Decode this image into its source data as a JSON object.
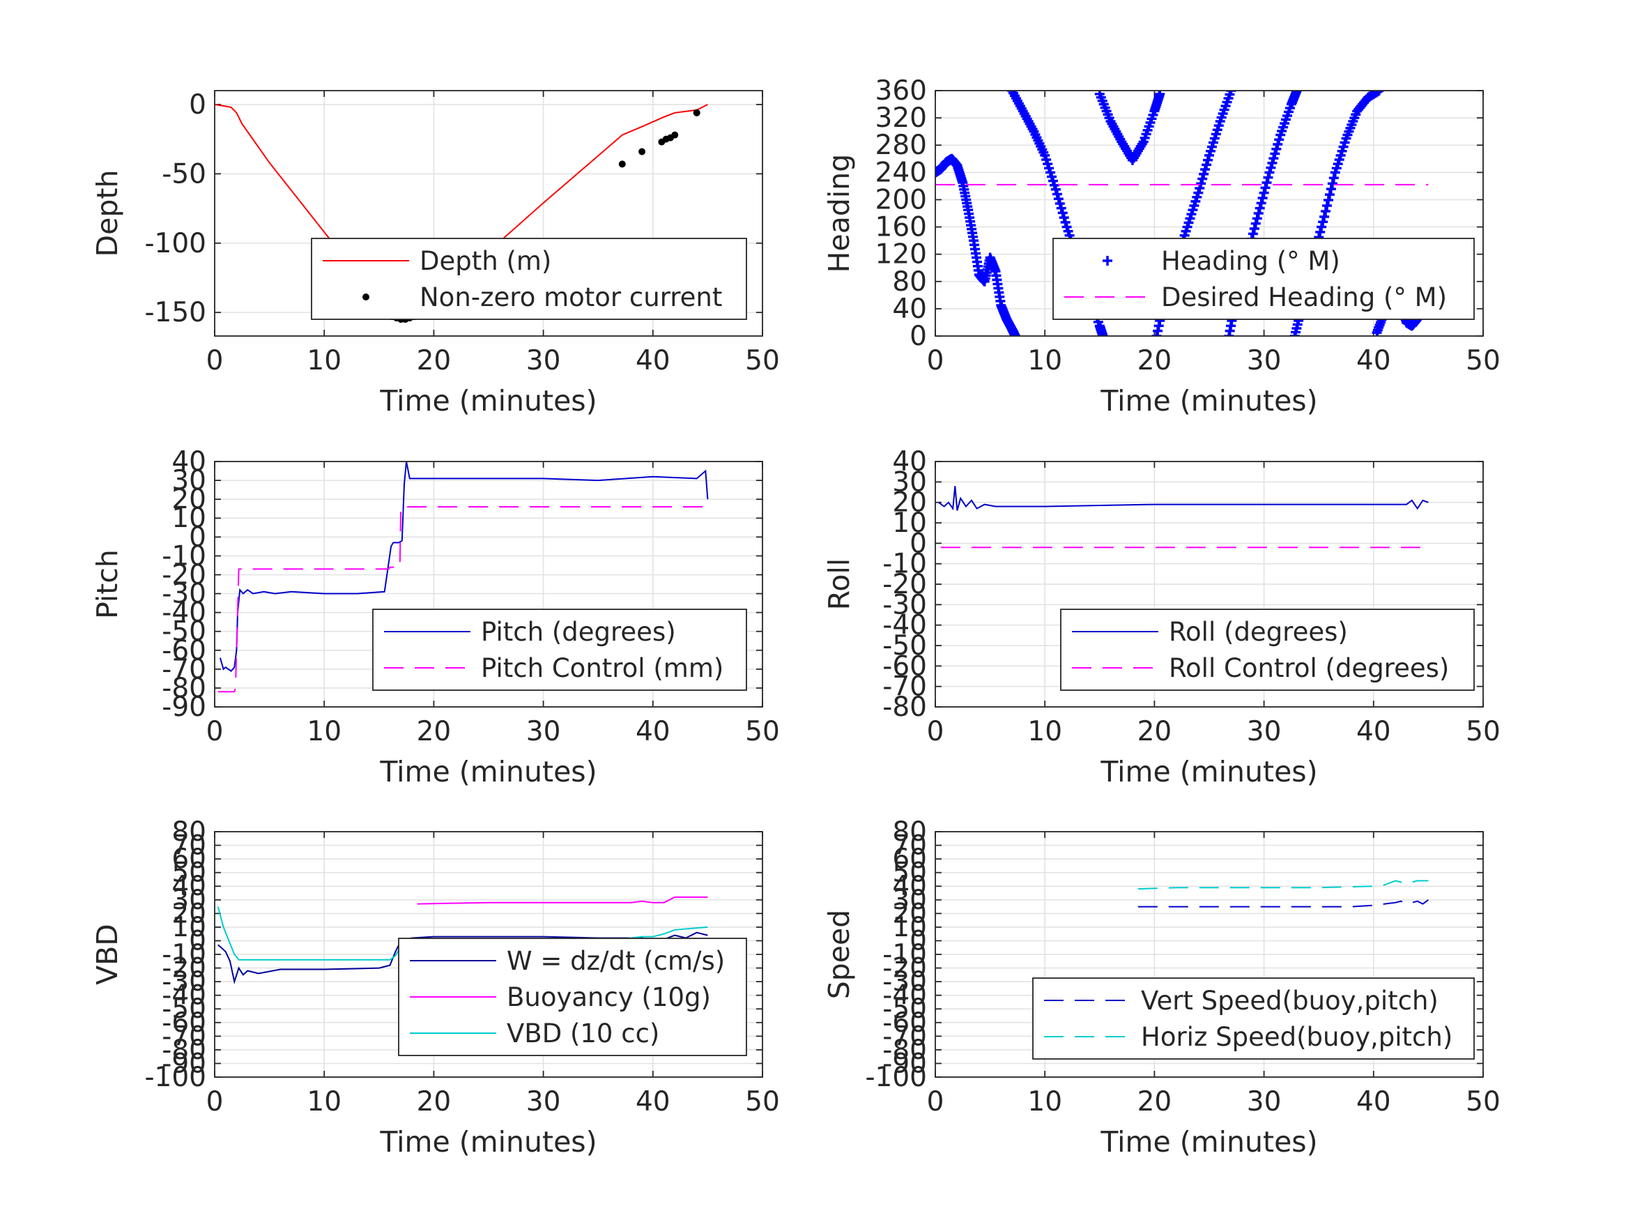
{
  "chart_data": [
    {
      "type": "line",
      "xlabel": "Time (minutes)",
      "ylabel": "Depth",
      "xlim": [
        0,
        50
      ],
      "ylim": [
        -167,
        10
      ],
      "xticks": [
        "0",
        "10",
        "20",
        "30",
        "40",
        "50"
      ],
      "yticks": [
        "0",
        "-50",
        "-100",
        "-150"
      ],
      "grid": true,
      "legend_position": "bottom-right",
      "series": [
        {
          "name": "Depth (m)",
          "color": "#ff0000",
          "style": "solid",
          "x": [
            0,
            0.8,
            1.5,
            2,
            2.5,
            5,
            8,
            11,
            14,
            16,
            17,
            18.5,
            20,
            25,
            30,
            35,
            37.2,
            39,
            41,
            42,
            44,
            45
          ],
          "y": [
            0,
            -1,
            -2,
            -6,
            -14,
            -42,
            -72,
            -102,
            -132,
            -152,
            -155,
            -153,
            -141,
            -106,
            -71,
            -37,
            -22,
            -16,
            -9,
            -6,
            -4,
            0
          ]
        },
        {
          "name": "Non-zero motor current",
          "color": "#000000",
          "style": "points",
          "x": [
            13.8,
            16.2,
            16.6,
            17.0,
            17.4,
            17.8,
            18.2,
            18.6,
            37.2,
            39.0,
            40.8,
            41.2,
            41.6,
            42.0,
            44.0
          ],
          "y": [
            -138,
            -153,
            -154,
            -155,
            -155,
            -154,
            -153,
            -152,
            -43,
            -34,
            -27,
            -25,
            -24,
            -22,
            -6
          ]
        }
      ]
    },
    {
      "type": "scatter",
      "xlabel": "Time (minutes)",
      "ylabel": "Heading",
      "xlim": [
        0,
        50
      ],
      "ylim": [
        0,
        360
      ],
      "xticks": [
        "0",
        "10",
        "20",
        "30",
        "40",
        "50"
      ],
      "yticks": [
        "0",
        "40",
        "80",
        "120",
        "160",
        "200",
        "240",
        "280",
        "320",
        "360"
      ],
      "grid": true,
      "legend_position": "bottom-right",
      "series": [
        {
          "name": "Heading (° M)",
          "color": "#0000ff",
          "style": "plus",
          "segments": [
            {
              "x": [
                0,
                0.5,
                1,
                1.5,
                2,
                2.5,
                3,
                3.5,
                4,
                4.5,
                5,
                5.5,
                6,
                6.5,
                7,
                7.3
              ],
              "y": [
                240,
                245,
                255,
                260,
                250,
                225,
                185,
                140,
                90,
                80,
                115,
                95,
                45,
                25,
                10,
                0
              ]
            },
            {
              "x": [
                7,
                8,
                9,
                10,
                11,
                12,
                13,
                14,
                15,
                15.3
              ],
              "y": [
                360,
                330,
                300,
                265,
                215,
                160,
                110,
                60,
                15,
                0
              ]
            },
            {
              "x": [
                15,
                16,
                17,
                18,
                19,
                20,
                20.5
              ],
              "y": [
                355,
                315,
                285,
                258,
                285,
                330,
                355
              ]
            },
            {
              "x": [
                20.2,
                21,
                22,
                23,
                24,
                25,
                26,
                27
              ],
              "y": [
                0,
                60,
                110,
                160,
                210,
                265,
                315,
                360
              ]
            },
            {
              "x": [
                26.8,
                27.5,
                28.5,
                29.5,
                30.5,
                31.5,
                32.5,
                33
              ],
              "y": [
                0,
                60,
                120,
                180,
                240,
                295,
                340,
                360
              ]
            },
            {
              "x": [
                32.8,
                33.5,
                34.5,
                35.5,
                36.5,
                37.5,
                38.5,
                39.5,
                40.5
              ],
              "y": [
                0,
                45,
                115,
                175,
                240,
                290,
                330,
                350,
                360
              ]
            },
            {
              "x": [
                40.3,
                41,
                41.8,
                42.5,
                43,
                43.5,
                44,
                44.5,
                45
              ],
              "y": [
                5,
                35,
                70,
                45,
                20,
                15,
                25,
                40,
                50
              ]
            }
          ]
        },
        {
          "name": "Desired Heading (° M)",
          "color": "#ff00ff",
          "style": "dashed",
          "x": [
            0,
            45
          ],
          "y": [
            222,
            222
          ]
        }
      ]
    },
    {
      "type": "line",
      "xlabel": "Time (minutes)",
      "ylabel": "Pitch",
      "xlim": [
        0,
        50
      ],
      "ylim": [
        -90,
        40
      ],
      "xticks": [
        "0",
        "10",
        "20",
        "30",
        "40",
        "50"
      ],
      "yticks": [
        "40",
        "30",
        "20",
        "10",
        "0",
        "-10",
        "-20",
        "-30",
        "-40",
        "-50",
        "-60",
        "-70",
        "-80",
        "-90"
      ],
      "grid": true,
      "legend_position": "bottom-right",
      "series": [
        {
          "name": "Pitch (degrees)",
          "color": "#0000cc",
          "style": "solid",
          "x": [
            0.5,
            0.8,
            1.0,
            1.5,
            1.8,
            2.0,
            2.1,
            2.3,
            2.6,
            3.0,
            3.5,
            4.5,
            5.5,
            7,
            10,
            13,
            15.5,
            16.1,
            16.3,
            16.8,
            17.1,
            17.3,
            17.5,
            17.8,
            18.5,
            22,
            30,
            35,
            40,
            44,
            44.8,
            45
          ],
          "y": [
            -64,
            -70,
            -69,
            -71,
            -69,
            -60,
            -40,
            -28,
            -30,
            -28,
            -30,
            -29,
            -30,
            -29,
            -30,
            -30,
            -29,
            -5,
            -3,
            -3,
            -2,
            28,
            40,
            31,
            31,
            31,
            31,
            30,
            32,
            31,
            35,
            20
          ]
        },
        {
          "name": "Pitch Control (mm)",
          "color": "#ff00ff",
          "style": "dashed",
          "x": [
            0.3,
            1.8,
            1.9,
            2.2,
            15.9,
            16.0,
            16.9,
            17.0,
            45
          ],
          "y": [
            -82,
            -82,
            -80,
            -17,
            -17,
            -16,
            -16,
            16,
            16
          ]
        }
      ]
    },
    {
      "type": "line",
      "xlabel": "Time (minutes)",
      "ylabel": "Roll",
      "xlim": [
        0,
        50
      ],
      "ylim": [
        -80,
        40
      ],
      "xticks": [
        "0",
        "10",
        "20",
        "30",
        "40",
        "50"
      ],
      "yticks": [
        "40",
        "30",
        "20",
        "10",
        "0",
        "-10",
        "-20",
        "-30",
        "-40",
        "-50",
        "-60",
        "-70",
        "-80"
      ],
      "grid": true,
      "legend_position": "bottom-right",
      "series": [
        {
          "name": "Roll (degrees)",
          "color": "#0000cc",
          "style": "solid",
          "x": [
            0.3,
            0.8,
            1.2,
            1.6,
            1.8,
            2.0,
            2.3,
            2.8,
            3.3,
            3.8,
            4.5,
            5.5,
            10,
            20,
            30,
            40,
            43,
            43.5,
            44,
            44.5,
            45
          ],
          "y": [
            20,
            18,
            20,
            17,
            28,
            16,
            22,
            18,
            21,
            17,
            19,
            18,
            18,
            19,
            19,
            19,
            19,
            21,
            17,
            21,
            20
          ]
        },
        {
          "name": "Roll Control (degrees)",
          "color": "#ff00ff",
          "style": "dashed",
          "x": [
            0.5,
            45
          ],
          "y": [
            -2,
            -2
          ]
        }
      ]
    },
    {
      "type": "line",
      "xlabel": "Time (minutes)",
      "ylabel": "VBD",
      "xlim": [
        0,
        50
      ],
      "ylim": [
        -100,
        80
      ],
      "xticks": [
        "0",
        "10",
        "20",
        "30",
        "40",
        "50"
      ],
      "yticks": [
        "80",
        "70",
        "60",
        "50",
        "40",
        "30",
        "20",
        "10",
        "0",
        "-10",
        "-20",
        "-30",
        "-40",
        "-50",
        "-60",
        "-70",
        "-80",
        "-90",
        "-100"
      ],
      "grid": true,
      "legend_position": "bottom-right",
      "series": [
        {
          "name": "W = dz/dt (cm/s)",
          "color": "#000099",
          "style": "solid",
          "x": [
            0.3,
            0.6,
            1.0,
            1.4,
            1.8,
            2.2,
            2.6,
            3.0,
            4,
            6,
            10,
            15,
            16,
            16.5,
            17,
            18,
            20,
            25,
            30,
            35,
            39,
            40,
            41,
            42,
            43,
            44,
            45
          ],
          "y": [
            -3,
            -5,
            -8,
            -15,
            -30,
            -20,
            -25,
            -22,
            -24,
            -21,
            -21,
            -20,
            -18,
            -8,
            0,
            2,
            3,
            3,
            3,
            2,
            2,
            0,
            1,
            4,
            2,
            6,
            4
          ]
        },
        {
          "name": "Buoyancy (10g)",
          "color": "#ff00ff",
          "style": "solid",
          "x": [
            18.5,
            25,
            30,
            35,
            37,
            38,
            39,
            40,
            41,
            41.5,
            42,
            45
          ],
          "y": [
            27,
            28,
            28,
            28,
            28,
            28,
            29,
            28,
            28,
            30,
            32,
            32
          ]
        },
        {
          "name": "VBD (10 cc)",
          "color": "#00cccc",
          "style": "solid",
          "x": [
            0.3,
            0.8,
            1.3,
            1.8,
            2.2,
            16,
            16.5,
            17,
            18,
            25,
            35,
            37,
            38,
            39,
            40,
            41,
            42,
            45
          ],
          "y": [
            25,
            10,
            0,
            -10,
            -14,
            -14,
            -11,
            -4,
            0,
            1,
            1,
            1,
            2,
            3,
            3,
            5,
            8,
            10
          ]
        }
      ]
    },
    {
      "type": "line",
      "xlabel": "Time (minutes)",
      "ylabel": "Speed",
      "xlim": [
        0,
        50
      ],
      "ylim": [
        -100,
        80
      ],
      "xticks": [
        "0",
        "10",
        "20",
        "30",
        "40",
        "50"
      ],
      "yticks": [
        "80",
        "70",
        "60",
        "50",
        "40",
        "30",
        "20",
        "10",
        "0",
        "-10",
        "-20",
        "-30",
        "-40",
        "-50",
        "-60",
        "-70",
        "-80",
        "-90",
        "-100"
      ],
      "grid": true,
      "legend_position": "bottom-right",
      "series": [
        {
          "name": "Vert Speed(buoy,pitch)",
          "color": "#0000cc",
          "style": "dashed",
          "x": [
            18.5,
            22,
            26,
            30,
            34,
            38,
            40,
            42,
            42.5,
            43,
            44,
            44.5,
            45
          ],
          "y": [
            25,
            25,
            25,
            25,
            25,
            25,
            26,
            28,
            29,
            27,
            29,
            27,
            30
          ]
        },
        {
          "name": "Horiz Speed(buoy,pitch)",
          "color": "#00cccc",
          "style": "dashed",
          "x": [
            18.5,
            22,
            26,
            30,
            35,
            40,
            41,
            42,
            43,
            44,
            45
          ],
          "y": [
            38,
            39,
            39,
            39,
            39,
            40,
            41,
            44,
            42,
            44,
            44
          ]
        }
      ]
    }
  ]
}
